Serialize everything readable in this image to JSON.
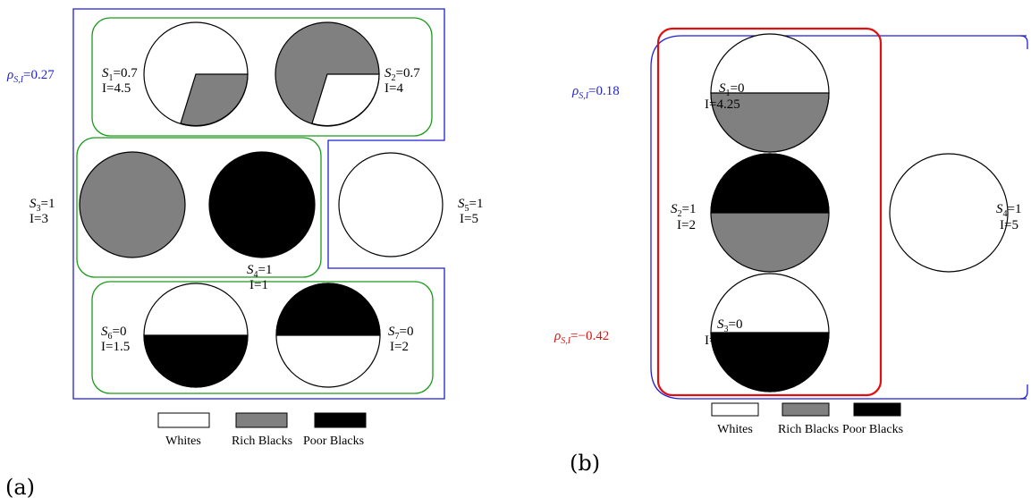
{
  "panel_a": {
    "caption": "(a)",
    "rho": {
      "sym": "ρ",
      "sub": "S,I",
      "value": "=0.27",
      "color": "#1f1fd6"
    },
    "units": [
      {
        "s_sym": "S",
        "s_sub": "1",
        "s_val": "=0.7",
        "i": "I=4.5"
      },
      {
        "s_sym": "S",
        "s_sub": "2",
        "s_val": "=0.7",
        "i": "I=4"
      },
      {
        "s_sym": "S",
        "s_sub": "3",
        "s_val": "=1",
        "i": "I=3"
      },
      {
        "s_sym": "S",
        "s_sub": "4",
        "s_val": "=1",
        "i": "I=1"
      },
      {
        "s_sym": "S",
        "s_sub": "5",
        "s_val": "=1",
        "i": "I=5"
      },
      {
        "s_sym": "S",
        "s_sub": "6",
        "s_val": "=0",
        "i": "I=1.5"
      },
      {
        "s_sym": "S",
        "s_sub": "7",
        "s_val": "=0",
        "i": "I=2"
      }
    ],
    "legend": [
      "Whites",
      "Rich Blacks",
      "Poor Blacks"
    ]
  },
  "panel_b": {
    "caption": "(b)",
    "rho_outer": {
      "sym": "ρ",
      "sub": "S,I",
      "value": "=0.18",
      "color": "#1f1fd6"
    },
    "rho_inner": {
      "sym": "ρ",
      "sub": "S,I",
      "value": "=−0.42",
      "color": "#e01010"
    },
    "units": [
      {
        "s_sym": "S",
        "s_sub": "1",
        "s_val": "=0",
        "i": "I=4.25"
      },
      {
        "s_sym": "S",
        "s_sub": "2",
        "s_val": "=1",
        "i": "I=2"
      },
      {
        "s_sym": "S",
        "s_sub": "3",
        "s_val": "=0",
        "i": "I=1.75"
      },
      {
        "s_sym": "S",
        "s_sub": "4",
        "s_val": "=1",
        "i": "I=5"
      }
    ],
    "legend": [
      "Whites",
      "Rich Blacks",
      "Poor Blacks"
    ]
  },
  "colors": {
    "white": "#ffffff",
    "rich_black": "#808080",
    "poor_black": "#000000",
    "outer_boundary": "#1f1fd6",
    "group_boundary": "#1a9a1a",
    "inner_boundary": "#e01010"
  }
}
